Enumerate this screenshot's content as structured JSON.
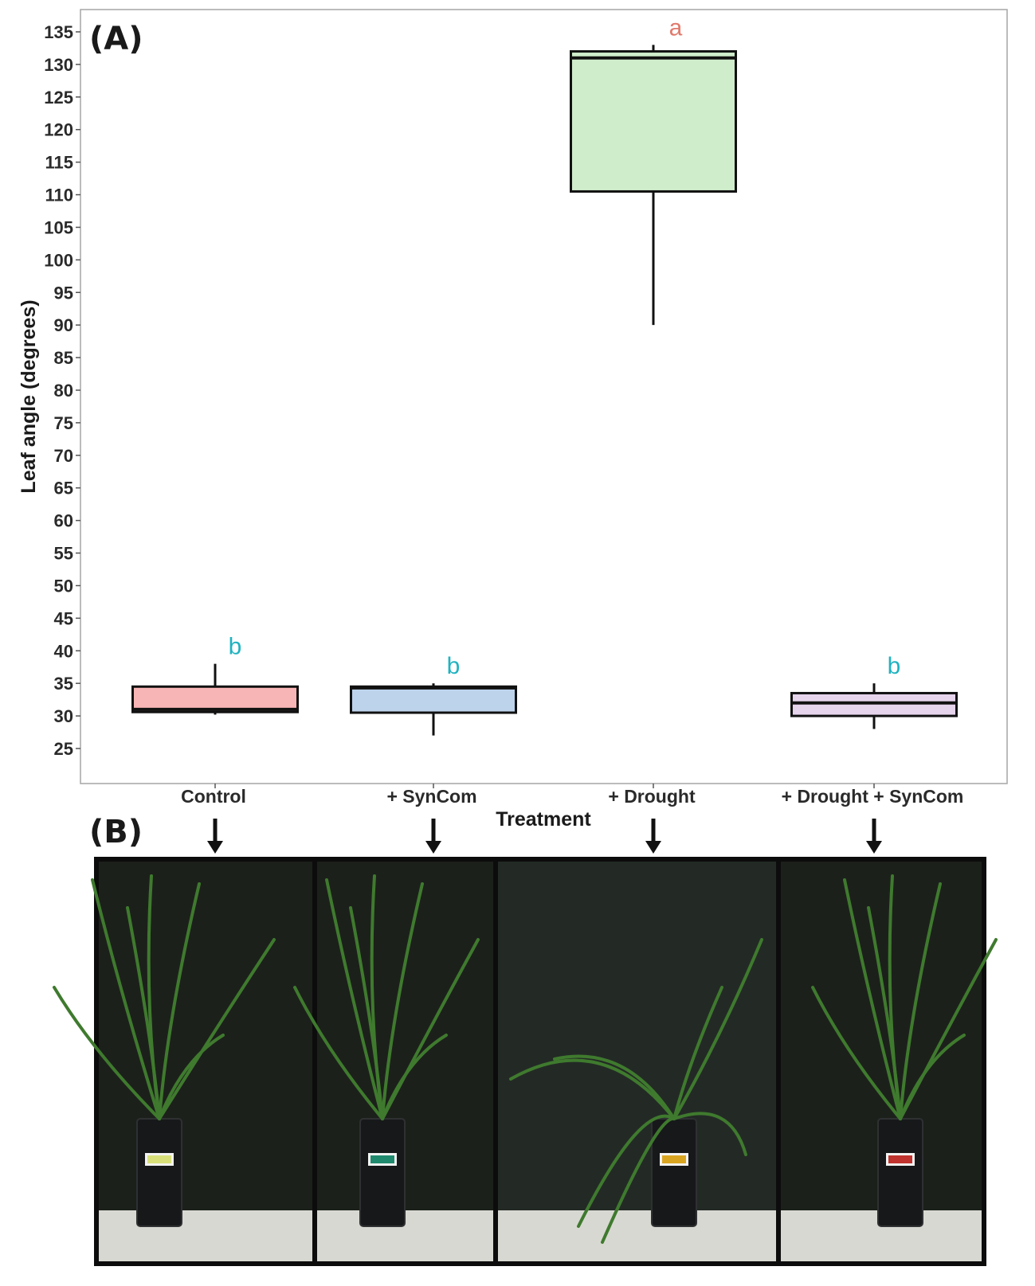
{
  "panel_a": "(A)",
  "panel_b": "(B)",
  "chart_data": {
    "type": "boxplot",
    "xlabel": "Treatment",
    "ylabel": "Leaf angle (degrees)",
    "ylim": [
      22.5,
      138
    ],
    "yticks": [
      25,
      30,
      35,
      40,
      45,
      50,
      55,
      60,
      65,
      70,
      75,
      80,
      85,
      90,
      95,
      100,
      105,
      110,
      115,
      120,
      125,
      130,
      135
    ],
    "grid": false,
    "categories": [
      "Control",
      "+ SynCom",
      "+ Drought",
      "+ Drought + SynCom"
    ],
    "boxes": [
      {
        "category": "Control",
        "min": 30.2,
        "q1": 30.6,
        "median": 31.0,
        "q3": 34.5,
        "max": 38.0,
        "letter": "b",
        "fill": "#f8b5b5",
        "letter_color": "#1fb3c0"
      },
      {
        "category": "+ SynCom",
        "min": 27.0,
        "q1": 30.5,
        "median": 34.3,
        "q3": 34.5,
        "max": 35.0,
        "letter": "b",
        "fill": "#bdd3ec",
        "letter_color": "#1fb3c0"
      },
      {
        "category": "+ Drought",
        "min": 90.0,
        "q1": 110.5,
        "median": 131.0,
        "q3": 132.0,
        "max": 133.0,
        "letter": "a",
        "fill": "#cfeccb",
        "letter_color": "#e07a6c"
      },
      {
        "category": "+ Drought + SynCom",
        "min": 28.0,
        "q1": 30.0,
        "median": 32.0,
        "q3": 33.5,
        "max": 35.0,
        "letter": "b",
        "fill": "#e6d3ec",
        "letter_color": "#1fb3c0"
      }
    ]
  },
  "photos": [
    {
      "treatment": "Control",
      "tag_color": "#d9e07a"
    },
    {
      "treatment": "+ SynCom",
      "tag_color": "#1f8a6e"
    },
    {
      "treatment": "+ Drought",
      "tag_color": "#d9a521"
    },
    {
      "treatment": "+ Drought + SynCom",
      "tag_color": "#c0332e"
    }
  ]
}
